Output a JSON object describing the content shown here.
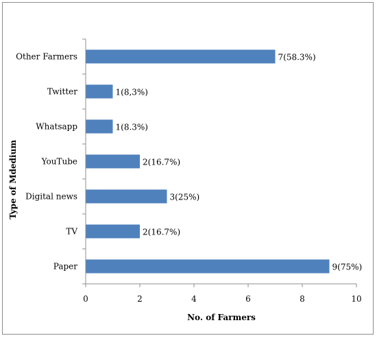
{
  "chart_data": {
    "type": "bar",
    "orientation": "horizontal",
    "categories": [
      "Other Farmers",
      "Twitter",
      "Whatsapp",
      "YouTube",
      "Digital news",
      "TV",
      "Paper"
    ],
    "values": [
      7,
      1,
      1,
      2,
      3,
      2,
      9
    ],
    "data_labels": [
      "7(58.3%)",
      "1(8,3%)",
      "1(8.3%)",
      "2(16.7%)",
      "3(25%)",
      "2(16.7%)",
      "9(75%)"
    ],
    "xlabel": "No. of Farmers",
    "ylabel": "Type of Mdedium",
    "xlim": [
      0,
      10
    ],
    "xticks": [
      0,
      2,
      4,
      6,
      8,
      10
    ],
    "xtick_labels": [
      "0",
      "2",
      "4",
      "6",
      "8",
      "10"
    ],
    "grid": false,
    "legend": "none",
    "colors": {
      "bar": "#4f81bd",
      "axis": "#8c8c8c"
    }
  }
}
